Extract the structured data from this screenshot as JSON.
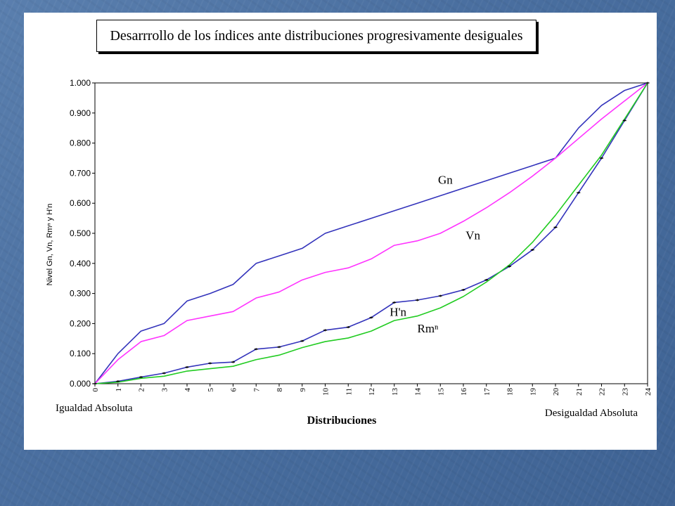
{
  "chart_data": {
    "type": "line",
    "title": "Desarrrollo de los índices ante distribuciones progresivamente desiguales",
    "xlabel": "Distribuciones",
    "ylabel": "Nivel Gn, Vn, Rmⁿ y H'n",
    "x_start_label": "Igualdad Absoluta",
    "x_end_label": "Desigualdad  Absoluta",
    "x": [
      0,
      1,
      2,
      3,
      4,
      5,
      6,
      7,
      8,
      9,
      10,
      11,
      12,
      13,
      14,
      15,
      16,
      17,
      18,
      19,
      20,
      21,
      22,
      23,
      24
    ],
    "x_tick_labels": [
      "0",
      "1",
      "2",
      "3",
      "4",
      "5",
      "6",
      "7",
      "8",
      "9",
      "10",
      "11",
      "12",
      "13",
      "14",
      "15",
      "16",
      "17",
      "18",
      "19",
      "20",
      "21",
      "22",
      "23",
      "24"
    ],
    "ylim": [
      0,
      1
    ],
    "y_ticks": [
      0,
      0.1,
      0.2,
      0.3,
      0.4,
      0.5,
      0.6,
      0.7,
      0.8,
      0.9,
      1.0
    ],
    "y_tick_labels": [
      "0.000",
      "0.100",
      "0.200",
      "0.300",
      "0.400",
      "0.500",
      "0.600",
      "0.700",
      "0.800",
      "0.900",
      "1.000"
    ],
    "grid": false,
    "series": [
      {
        "name": "Gn",
        "color": "#3333bb",
        "values": [
          0.0,
          0.1,
          0.175,
          0.2,
          0.275,
          0.3,
          0.33,
          0.4,
          0.425,
          0.45,
          0.5,
          0.525,
          0.55,
          0.575,
          0.6,
          0.625,
          0.65,
          0.675,
          0.7,
          0.725,
          0.75,
          0.85,
          0.925,
          0.975,
          1.0
        ]
      },
      {
        "name": "Vn",
        "color": "#ff33ff",
        "values": [
          0.0,
          0.08,
          0.14,
          0.16,
          0.21,
          0.225,
          0.24,
          0.285,
          0.305,
          0.345,
          0.37,
          0.385,
          0.415,
          0.46,
          0.475,
          0.5,
          0.54,
          0.585,
          0.635,
          0.69,
          0.75,
          0.815,
          0.88,
          0.94,
          1.0
        ]
      },
      {
        "name": "H'n",
        "color": "#3333bb",
        "markers": true,
        "values": [
          0.0,
          0.008,
          0.022,
          0.035,
          0.055,
          0.068,
          0.072,
          0.115,
          0.122,
          0.142,
          0.178,
          0.188,
          0.22,
          0.27,
          0.278,
          0.292,
          0.312,
          0.345,
          0.39,
          0.445,
          0.52,
          0.635,
          0.75,
          0.875,
          1.0
        ]
      },
      {
        "name": "Rmⁿ",
        "color": "#22cc22",
        "values": [
          0.0,
          0.005,
          0.018,
          0.025,
          0.042,
          0.05,
          0.058,
          0.08,
          0.095,
          0.12,
          0.14,
          0.152,
          0.175,
          0.21,
          0.225,
          0.252,
          0.29,
          0.338,
          0.395,
          0.47,
          0.56,
          0.66,
          0.76,
          0.88,
          1.0
        ]
      }
    ]
  }
}
